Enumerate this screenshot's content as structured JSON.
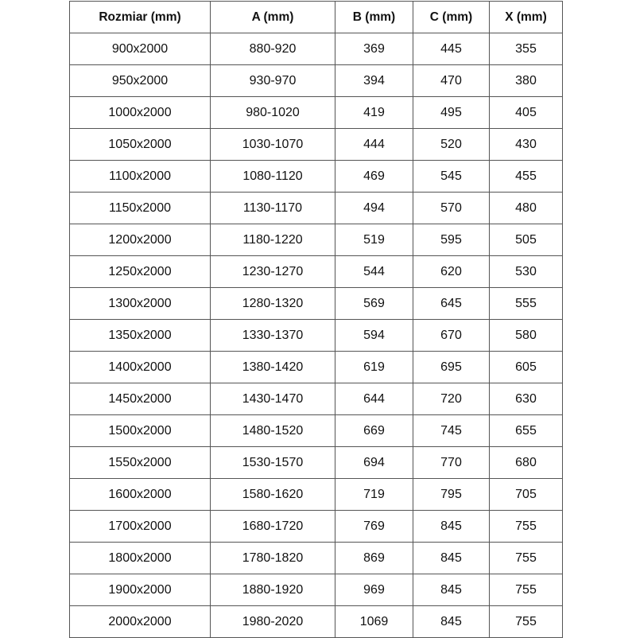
{
  "table": {
    "headers": [
      "Rozmiar (mm)",
      "A (mm)",
      "B (mm)",
      "C (mm)",
      "X (mm)"
    ],
    "rows": [
      [
        "900x2000",
        "880-920",
        "369",
        "445",
        "355"
      ],
      [
        "950x2000",
        "930-970",
        "394",
        "470",
        "380"
      ],
      [
        "1000x2000",
        "980-1020",
        "419",
        "495",
        "405"
      ],
      [
        "1050x2000",
        "1030-1070",
        "444",
        "520",
        "430"
      ],
      [
        "1100x2000",
        "1080-1120",
        "469",
        "545",
        "455"
      ],
      [
        "1150x2000",
        "1130-1170",
        "494",
        "570",
        "480"
      ],
      [
        "1200x2000",
        "1180-1220",
        "519",
        "595",
        "505"
      ],
      [
        "1250x2000",
        "1230-1270",
        "544",
        "620",
        "530"
      ],
      [
        "1300x2000",
        "1280-1320",
        "569",
        "645",
        "555"
      ],
      [
        "1350x2000",
        "1330-1370",
        "594",
        "670",
        "580"
      ],
      [
        "1400x2000",
        "1380-1420",
        "619",
        "695",
        "605"
      ],
      [
        "1450x2000",
        "1430-1470",
        "644",
        "720",
        "630"
      ],
      [
        "1500x2000",
        "1480-1520",
        "669",
        "745",
        "655"
      ],
      [
        "1550x2000",
        "1530-1570",
        "694",
        "770",
        "680"
      ],
      [
        "1600x2000",
        "1580-1620",
        "719",
        "795",
        "705"
      ],
      [
        "1700x2000",
        "1680-1720",
        "769",
        "845",
        "755"
      ],
      [
        "1800x2000",
        "1780-1820",
        "869",
        "845",
        "755"
      ],
      [
        "1900x2000",
        "1880-1920",
        "969",
        "845",
        "755"
      ],
      [
        "2000x2000",
        "1980-2020",
        "1069",
        "845",
        "755"
      ]
    ]
  }
}
